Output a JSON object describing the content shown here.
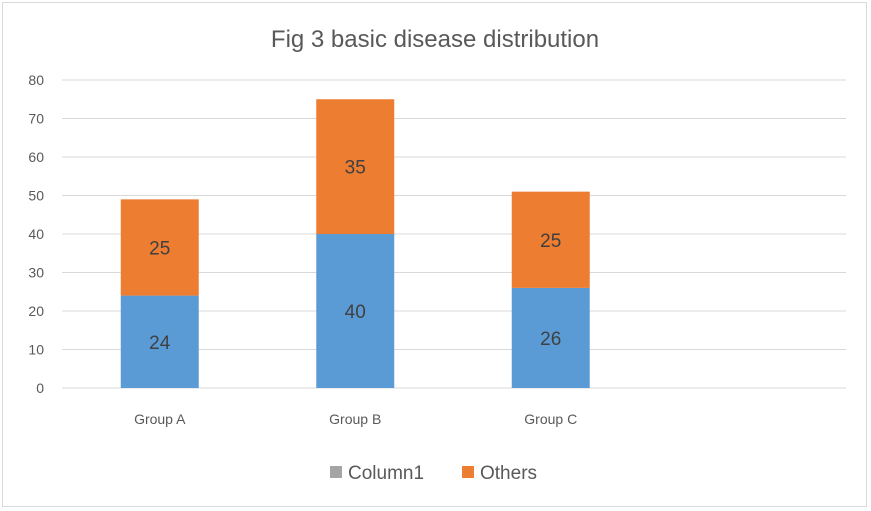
{
  "chart_data": {
    "type": "bar",
    "stacked": true,
    "title": "Fig 3 basic disease distribution",
    "xlabel": "",
    "ylabel": "",
    "categories": [
      "Group A",
      "Group B",
      "Group C"
    ],
    "ylim": [
      0,
      80
    ],
    "yticks": [
      0,
      10,
      20,
      30,
      40,
      50,
      60,
      70,
      80
    ],
    "grid": true,
    "legend_position": "bottom",
    "series": [
      {
        "values": [
          24,
          40,
          26
        ],
        "color": "#5b9bd5",
        "labels": [
          "24",
          "40",
          "26"
        ]
      },
      {
        "name": "Others",
        "values": [
          25,
          35,
          25
        ],
        "color": "#ed7d31",
        "labels": [
          "25",
          "35",
          "25"
        ]
      }
    ],
    "legend": [
      {
        "name": "Column1",
        "color": "#a5a5a5"
      },
      {
        "name": "Others",
        "color": "#ed7d31"
      }
    ]
  }
}
